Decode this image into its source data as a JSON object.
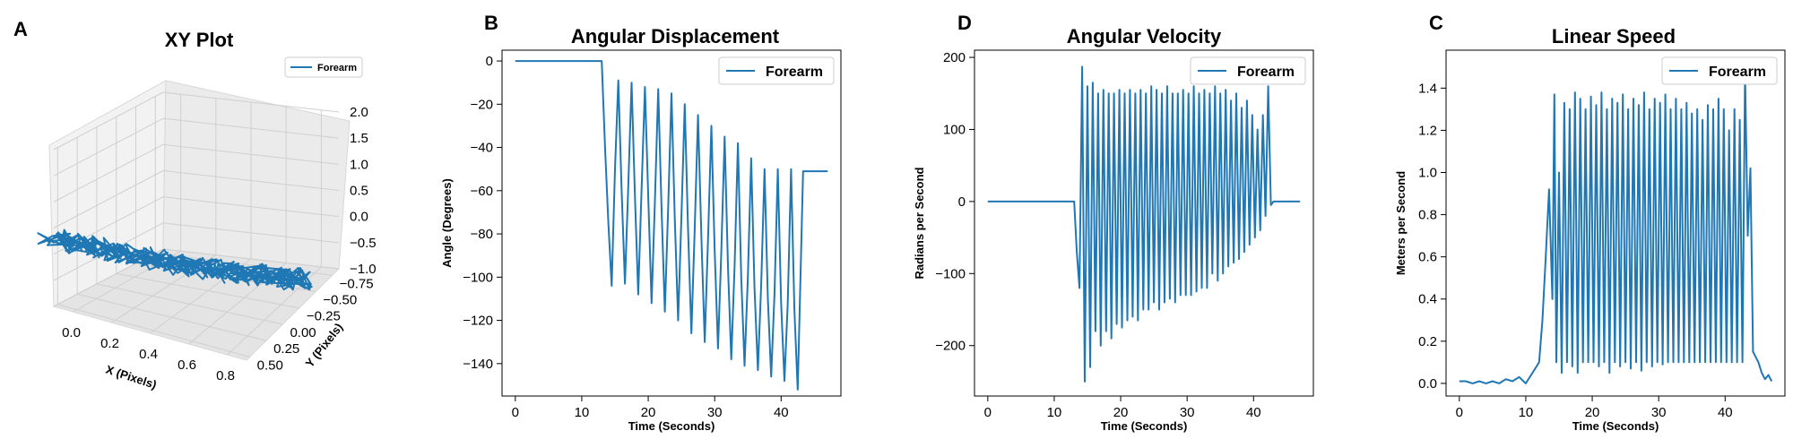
{
  "chart_data": [
    {
      "panel": "A",
      "type": "line3d",
      "title": "XY Plot",
      "xlabel": "X (Pixels)",
      "ylabel": "Y (Pixels)",
      "zlabel": "",
      "legend": [
        "Forearm"
      ],
      "legend_position": "top-right",
      "x_ticks": [
        "0.0",
        "0.2",
        "0.4",
        "0.6",
        "0.8"
      ],
      "y_ticks": [
        "−0.75",
        "−0.50",
        "−0.25",
        "0.00",
        "0.25",
        "0.50"
      ],
      "z_ticks": [
        "−1.0",
        "−0.5",
        "0.0",
        "0.5",
        "1.0",
        "1.5",
        "2.0"
      ],
      "xlim": [
        -0.1,
        0.9
      ],
      "ylim": [
        -0.85,
        0.55
      ],
      "zlim": [
        -1.0,
        2.0
      ],
      "grid": true,
      "series": [
        {
          "name": "Forearm",
          "color": "#1f77b4",
          "x": [
            -0.1,
            0.0,
            0.1,
            0.2,
            0.3,
            0.4,
            0.5,
            0.6,
            0.7,
            0.8,
            0.85
          ],
          "y": [
            0.55,
            0.45,
            0.35,
            0.25,
            0.15,
            0.05,
            -0.05,
            -0.15,
            -0.25,
            -0.35,
            -0.4
          ],
          "z": [
            0.3,
            0.2,
            0.1,
            0.0,
            -0.1,
            -0.2,
            -0.3,
            -0.4,
            -0.5,
            -0.6,
            -0.7
          ]
        }
      ]
    },
    {
      "panel": "B",
      "type": "line",
      "title": "Angular Displacement",
      "xlabel": "Time (Seconds)",
      "ylabel": "Angle (Degrees)",
      "legend": [
        "Forearm"
      ],
      "legend_position": "top-right",
      "xlim": [
        -2,
        49
      ],
      "ylim": [
        -155,
        5
      ],
      "x_ticks": [
        0,
        10,
        20,
        30,
        40
      ],
      "y_ticks": [
        0,
        -20,
        -40,
        -60,
        -80,
        -100,
        -120,
        -140
      ],
      "grid": false,
      "series": [
        {
          "name": "Forearm",
          "color": "#1f77b4",
          "x": [
            0,
            13,
            13.5,
            14.0,
            14.5,
            15.0,
            15.5,
            16.0,
            16.5,
            17.0,
            17.5,
            18.0,
            18.5,
            19.0,
            19.5,
            20.0,
            20.5,
            21.0,
            21.5,
            22.0,
            22.5,
            23.0,
            23.5,
            24.0,
            24.5,
            25.0,
            25.5,
            26.0,
            26.5,
            27.0,
            27.5,
            28.0,
            28.5,
            29.0,
            29.5,
            30.0,
            30.5,
            31.0,
            31.5,
            32.0,
            32.5,
            33.0,
            33.5,
            34.0,
            34.5,
            35.0,
            35.5,
            36.0,
            36.5,
            37.0,
            37.5,
            38.0,
            38.5,
            39.0,
            39.5,
            40.0,
            40.5,
            41.0,
            41.5,
            42.0,
            42.5,
            43.0,
            43.3,
            47
          ],
          "y": [
            0,
            0,
            -40,
            -75,
            -104,
            -50,
            -9,
            -60,
            -103,
            -58,
            -10,
            -62,
            -108,
            -60,
            -12,
            -63,
            -112,
            -65,
            -13,
            -68,
            -116,
            -68,
            -15,
            -73,
            -120,
            -72,
            -20,
            -78,
            -126,
            -78,
            -25,
            -82,
            -130,
            -82,
            -30,
            -88,
            -133,
            -88,
            -35,
            -95,
            -138,
            -95,
            -38,
            -100,
            -141,
            -100,
            -45,
            -105,
            -143,
            -103,
            -50,
            -110,
            -146,
            -108,
            -50,
            -112,
            -148,
            -112,
            -50,
            -115,
            -152,
            -90,
            -51,
            -51
          ]
        }
      ]
    },
    {
      "panel": "D",
      "type": "line",
      "title": "Angular Velocity",
      "xlabel": "Time (Seconds)",
      "ylabel": "Radians per Second",
      "legend": [
        "Forearm"
      ],
      "legend_position": "top-right",
      "xlim": [
        -2,
        49
      ],
      "ylim": [
        -270,
        210
      ],
      "x_ticks": [
        0,
        10,
        20,
        30,
        40
      ],
      "y_ticks": [
        200,
        100,
        0,
        -100,
        -200
      ],
      "grid": false,
      "series": [
        {
          "name": "Forearm",
          "color": "#1f77b4",
          "x": [
            0,
            13,
            13.4,
            13.8,
            14.2,
            14.6,
            15.0,
            15.4,
            15.8,
            16.2,
            16.6,
            17.0,
            17.4,
            17.8,
            18.2,
            18.6,
            19.0,
            19.4,
            19.8,
            20.2,
            20.6,
            21.0,
            21.4,
            21.8,
            22.2,
            22.6,
            23.0,
            23.4,
            23.8,
            24.2,
            24.6,
            25.0,
            25.4,
            25.8,
            26.2,
            26.6,
            27.0,
            27.4,
            27.8,
            28.2,
            28.6,
            29.0,
            29.4,
            29.8,
            30.2,
            30.6,
            31.0,
            31.4,
            31.8,
            32.2,
            32.6,
            33.0,
            33.4,
            33.8,
            34.2,
            34.6,
            35.0,
            35.4,
            35.8,
            36.2,
            36.6,
            37.0,
            37.4,
            37.8,
            38.2,
            38.6,
            39.0,
            39.4,
            39.8,
            40.2,
            40.6,
            41.0,
            41.4,
            41.8,
            42.2,
            42.6,
            43.0,
            43.4,
            43.8,
            44.2,
            47
          ],
          "y": [
            0,
            0,
            -70,
            -120,
            187,
            -250,
            160,
            -230,
            165,
            -180,
            150,
            -200,
            155,
            -180,
            150,
            -190,
            150,
            -170,
            155,
            -175,
            150,
            -165,
            155,
            -160,
            150,
            -165,
            155,
            -150,
            150,
            -150,
            160,
            -140,
            155,
            -150,
            150,
            -140,
            160,
            -135,
            150,
            -140,
            150,
            -130,
            155,
            -130,
            150,
            -130,
            160,
            -125,
            150,
            -120,
            155,
            -120,
            150,
            -100,
            160,
            -110,
            150,
            -100,
            155,
            -90,
            140,
            -85,
            150,
            -80,
            130,
            -70,
            140,
            -60,
            120,
            -50,
            100,
            -40,
            120,
            -20,
            160,
            -5,
            0,
            0,
            0,
            0,
            0
          ]
        }
      ]
    },
    {
      "panel": "C",
      "type": "line",
      "title": "Linear Speed",
      "xlabel": "Time (Seconds)",
      "ylabel": "Meters per Second",
      "legend": [
        "Forearm"
      ],
      "legend_position": "top-right",
      "xlim": [
        -2,
        49
      ],
      "ylim": [
        -0.06,
        1.58
      ],
      "x_ticks": [
        0,
        10,
        20,
        30,
        40
      ],
      "y_ticks": [
        0.0,
        0.2,
        0.4,
        0.6,
        0.8,
        1.0,
        1.2,
        1.4
      ],
      "grid": false,
      "series": [
        {
          "name": "Forearm",
          "color": "#1f77b4",
          "x": [
            0,
            1,
            2,
            3,
            4,
            5,
            6,
            7,
            8,
            9,
            10,
            11,
            12,
            12.5,
            13,
            13.5,
            14,
            14.3,
            14.6,
            15,
            15.4,
            15.8,
            16.2,
            16.6,
            17,
            17.4,
            17.8,
            18.2,
            18.6,
            19,
            19.4,
            19.8,
            20.2,
            20.6,
            21,
            21.4,
            21.8,
            22.2,
            22.6,
            23,
            23.4,
            23.8,
            24.2,
            24.6,
            25,
            25.4,
            25.8,
            26.2,
            26.6,
            27,
            27.4,
            27.8,
            28.2,
            28.6,
            29,
            29.4,
            29.8,
            30.2,
            30.6,
            31,
            31.4,
            31.8,
            32.2,
            32.6,
            33,
            33.4,
            33.8,
            34.2,
            34.6,
            35,
            35.4,
            35.8,
            36.2,
            36.6,
            37,
            37.4,
            37.8,
            38.2,
            38.6,
            39,
            39.4,
            39.8,
            40.2,
            40.6,
            41,
            41.4,
            41.8,
            42.2,
            42.6,
            43,
            43.4,
            43.8,
            44.2,
            45,
            45.5,
            46,
            46.5,
            47
          ],
          "y": [
            0.01,
            0.01,
            0.0,
            0.01,
            0.0,
            0.01,
            0.0,
            0.02,
            0.01,
            0.03,
            0.0,
            0.05,
            0.1,
            0.3,
            0.6,
            0.92,
            0.4,
            1.37,
            0.1,
            1.0,
            0.05,
            1.33,
            0.1,
            1.3,
            0.08,
            1.38,
            0.05,
            1.35,
            0.1,
            1.3,
            0.1,
            1.36,
            0.1,
            1.32,
            0.08,
            1.38,
            0.1,
            1.3,
            0.05,
            1.35,
            0.1,
            1.33,
            0.08,
            1.37,
            0.1,
            1.3,
            0.07,
            1.35,
            0.1,
            1.32,
            0.06,
            1.38,
            0.1,
            1.3,
            0.08,
            1.35,
            0.1,
            1.33,
            0.09,
            1.37,
            0.1,
            1.3,
            0.1,
            1.35,
            0.1,
            1.3,
            0.1,
            1.33,
            0.1,
            1.28,
            0.1,
            1.3,
            0.1,
            1.25,
            0.1,
            1.32,
            0.1,
            1.3,
            0.1,
            1.35,
            0.1,
            1.3,
            0.1,
            1.2,
            0.1,
            1.3,
            0.1,
            1.25,
            0.1,
            1.48,
            0.7,
            1.02,
            0.15,
            0.1,
            0.05,
            0.02,
            0.04,
            0.01
          ]
        }
      ]
    }
  ]
}
